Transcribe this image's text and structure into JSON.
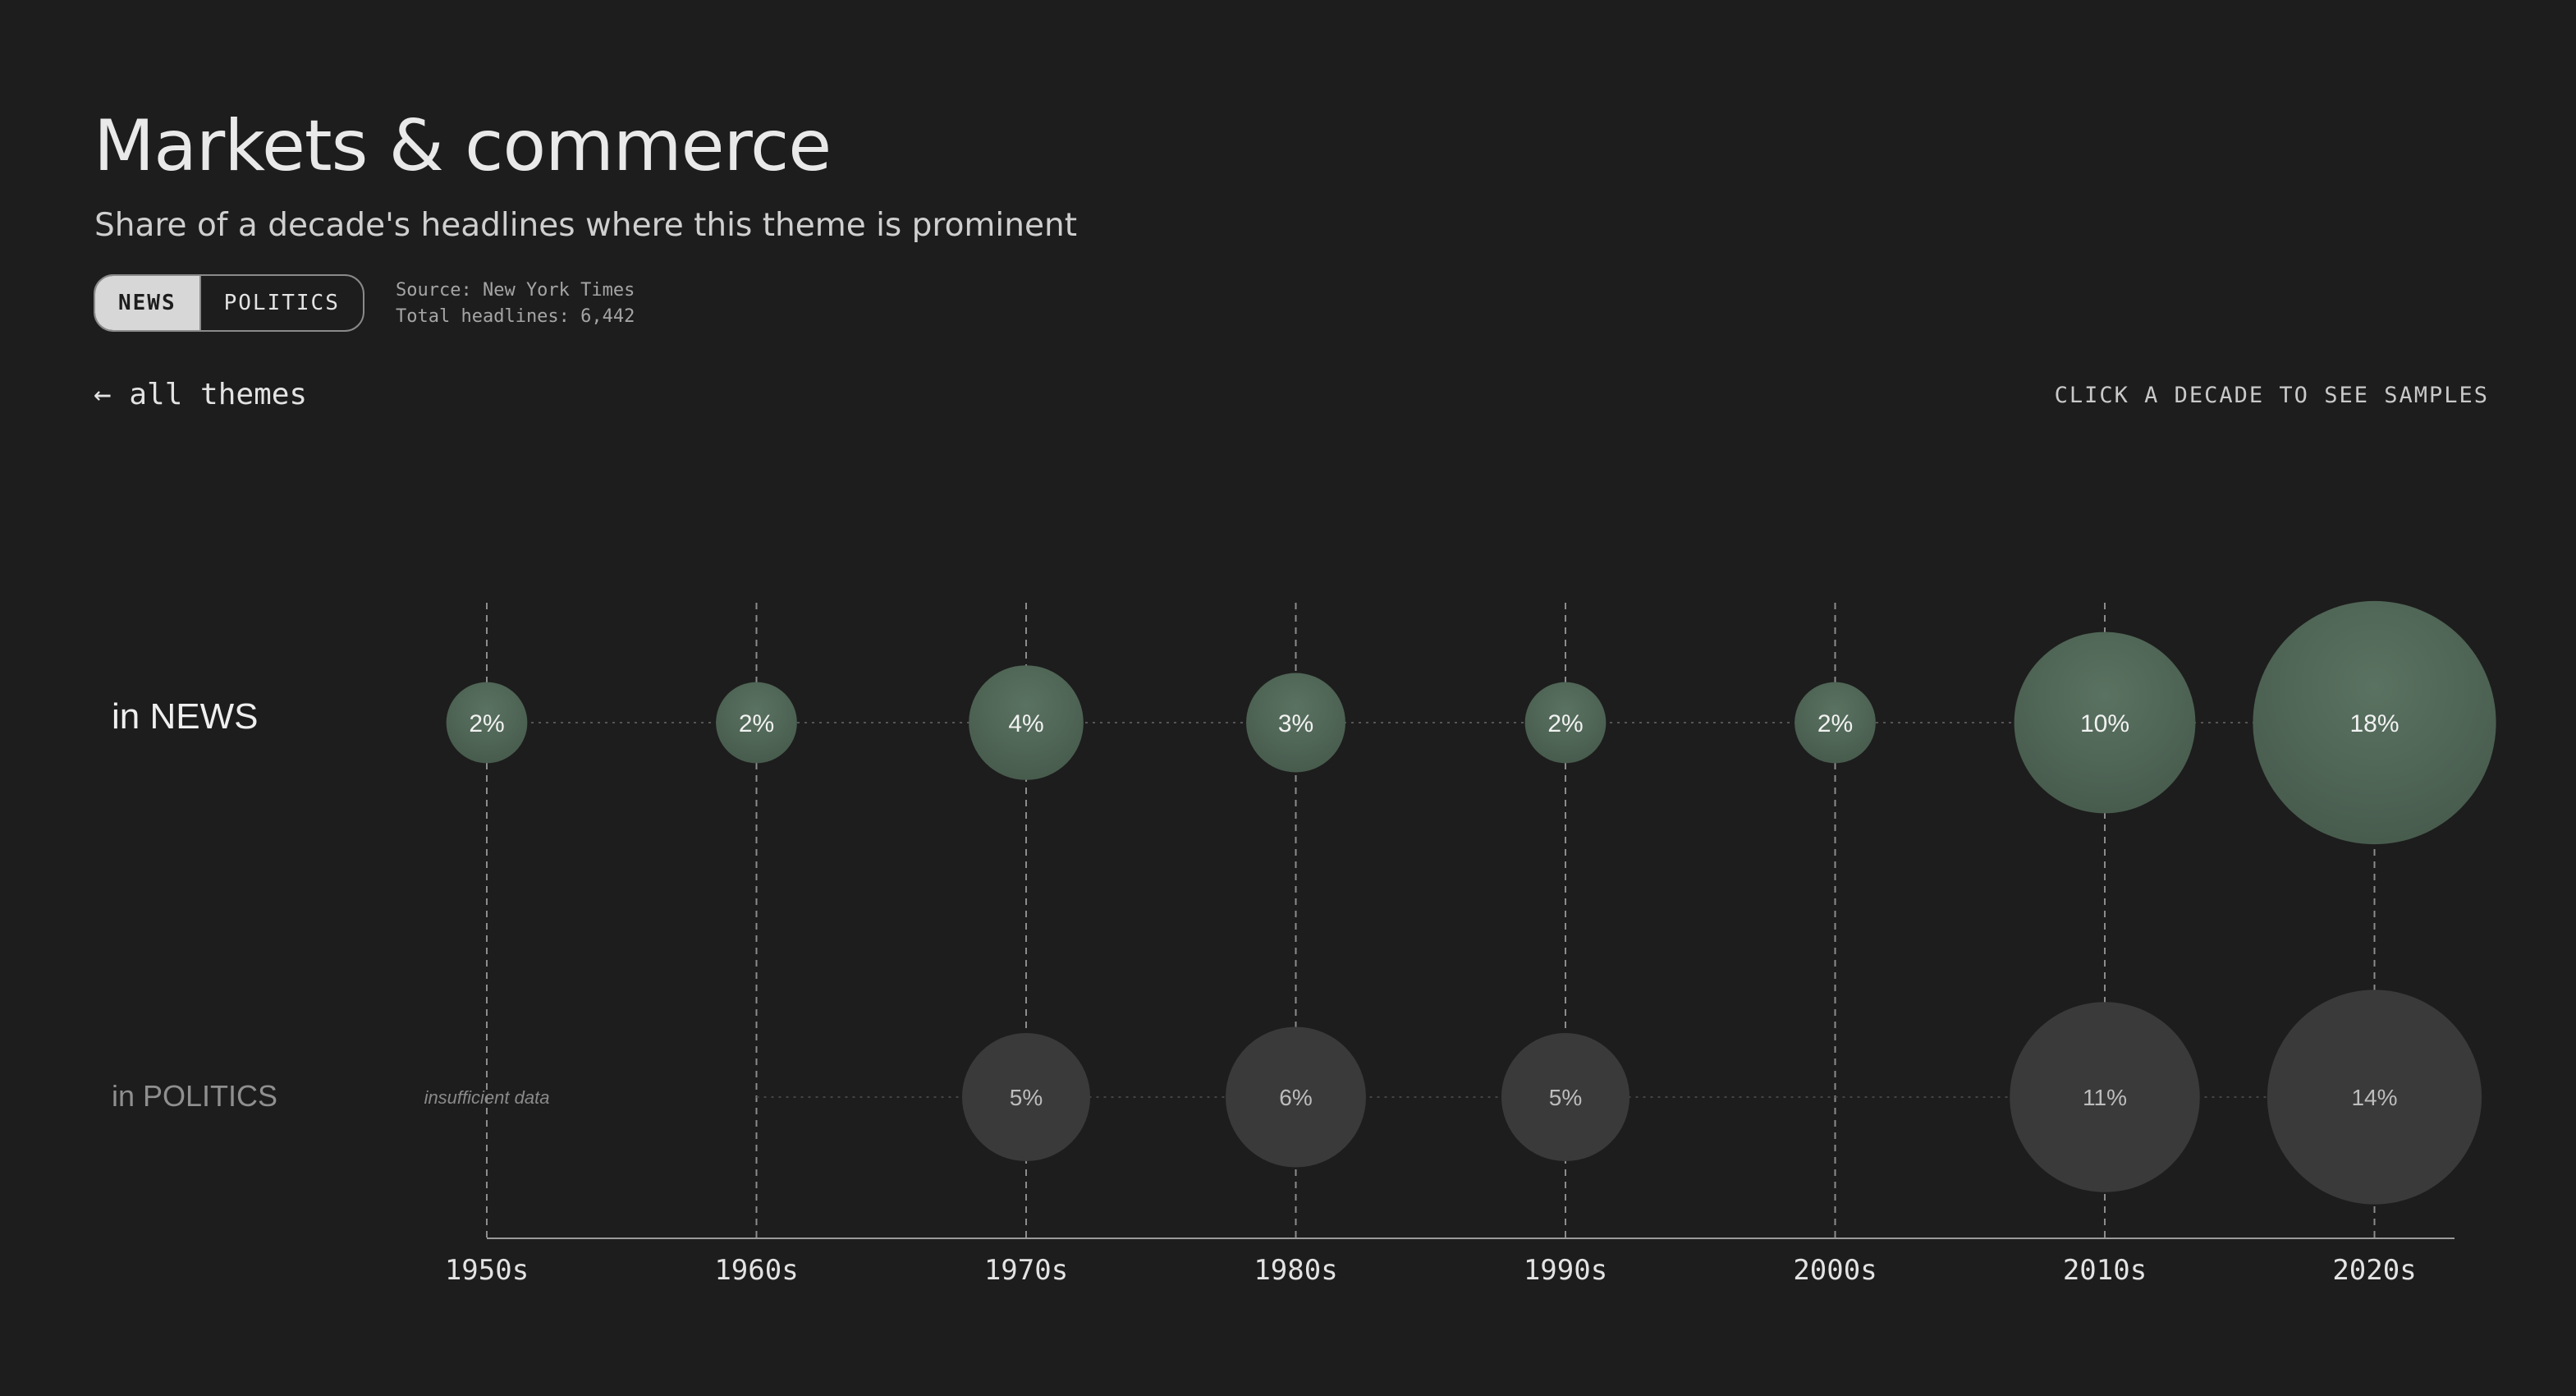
{
  "header": {
    "title": "Markets & commerce",
    "subtitle": "Share of a decade's headlines where this theme is prominent"
  },
  "toggle": {
    "options": [
      {
        "label": "NEWS",
        "active": true
      },
      {
        "label": "POLITICS",
        "active": false
      }
    ]
  },
  "meta": {
    "source": "Source: New York Times",
    "total": "Total headlines: 6,442"
  },
  "nav": {
    "back_label": "← all themes",
    "hint": "CLICK A DECADE TO SEE SAMPLES"
  },
  "colors": {
    "background": "#1d1d1d",
    "news_bubble": "#4f6556",
    "politics_bubble": "#3a3a3a"
  },
  "chart_data": {
    "type": "bubble",
    "categories": [
      "1950s",
      "1960s",
      "1970s",
      "1980s",
      "1990s",
      "2000s",
      "2010s",
      "2020s"
    ],
    "series": [
      {
        "name": "in NEWS",
        "values": [
          2,
          2,
          4,
          3,
          2,
          2,
          10,
          18
        ],
        "labels": [
          "2%",
          "2%",
          "4%",
          "3%",
          "2%",
          "2%",
          "10%",
          "18%"
        ]
      },
      {
        "name": "in POLITICS",
        "values": [
          null,
          null,
          5,
          6,
          5,
          null,
          11,
          14
        ],
        "labels": [
          "insufficient data",
          "",
          "5%",
          "6%",
          "5%",
          "",
          "11%",
          "14%"
        ]
      }
    ],
    "unit": "%"
  }
}
